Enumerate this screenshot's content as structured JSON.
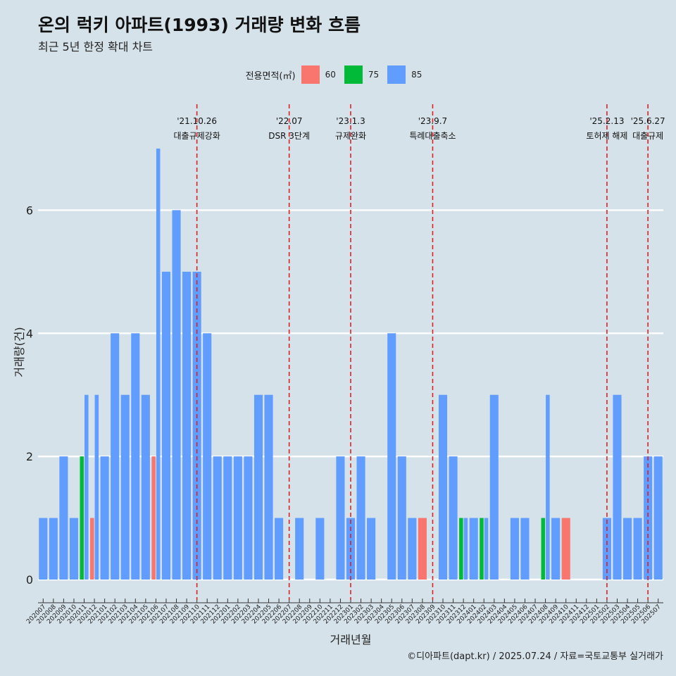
{
  "header": {
    "title": "온의 럭키 아파트(1993) 거래량 변화 흐름",
    "subtitle": "최근 5년 한정 확대 차트"
  },
  "legend": {
    "title": "전용면적(㎡)",
    "items": [
      {
        "label": "60",
        "color": "#F8766D"
      },
      {
        "label": "75",
        "color": "#00BA38"
      },
      {
        "label": "85",
        "color": "#619CFF"
      }
    ]
  },
  "caption": "©디아파트(dapt.kr) / 2025.07.24 / 자료=국토교통부 실거래가",
  "chart_data": {
    "type": "bar",
    "stacked": false,
    "grouped_by": "전용면적(㎡)",
    "xlabel": "거래년월",
    "ylabel": "거래량(건)",
    "ylim": [
      0,
      7
    ],
    "yticks": [
      0,
      2,
      4,
      6
    ],
    "grid": "horizontal",
    "legend_position": "top",
    "categories": [
      "202007",
      "202008",
      "202009",
      "202010",
      "202011",
      "202012",
      "202101",
      "202102",
      "202103",
      "202104",
      "202105",
      "202106",
      "202107",
      "202108",
      "202109",
      "202110",
      "202111",
      "202112",
      "202201",
      "202202",
      "202203",
      "202204",
      "202205",
      "202206",
      "202207",
      "202208",
      "202209",
      "202210",
      "202211",
      "202212",
      "202301",
      "202302",
      "202303",
      "202304",
      "202305",
      "202306",
      "202307",
      "202308",
      "202309",
      "202310",
      "202311",
      "202312",
      "202401",
      "202402",
      "202403",
      "202404",
      "202405",
      "202406",
      "202407",
      "202408",
      "202409",
      "202410",
      "202411",
      "202412",
      "202501",
      "202502",
      "202503",
      "202504",
      "202505",
      "202506",
      "202507"
    ],
    "series": [
      {
        "name": "60",
        "color": "#F8766D",
        "values": [
          0,
          0,
          0,
          0,
          0,
          1,
          0,
          0,
          0,
          0,
          0,
          2,
          0,
          0,
          0,
          0,
          0,
          0,
          0,
          0,
          0,
          0,
          0,
          0,
          0,
          0,
          0,
          0,
          0,
          0,
          0,
          0,
          0,
          0,
          0,
          0,
          0,
          1,
          0,
          0,
          0,
          0,
          0,
          0,
          0,
          0,
          0,
          0,
          0,
          0,
          0,
          1,
          0,
          0,
          0,
          0,
          0,
          0,
          0,
          0,
          0
        ]
      },
      {
        "name": "75",
        "color": "#00BA38",
        "values": [
          0,
          0,
          0,
          0,
          2,
          0,
          0,
          0,
          0,
          0,
          0,
          0,
          0,
          0,
          0,
          0,
          0,
          0,
          0,
          0,
          0,
          0,
          0,
          0,
          0,
          0,
          0,
          0,
          0,
          0,
          0,
          0,
          0,
          0,
          0,
          0,
          0,
          0,
          0,
          0,
          0,
          1,
          0,
          1,
          0,
          0,
          0,
          0,
          0,
          1,
          0,
          0,
          0,
          0,
          0,
          0,
          0,
          0,
          0,
          0,
          0
        ]
      },
      {
        "name": "85",
        "color": "#619CFF",
        "values": [
          1,
          1,
          2,
          1,
          3,
          3,
          2,
          4,
          3,
          4,
          3,
          7,
          5,
          6,
          5,
          5,
          4,
          2,
          2,
          2,
          2,
          3,
          3,
          1,
          0,
          1,
          0,
          1,
          0,
          2,
          1,
          2,
          1,
          0,
          4,
          2,
          1,
          0,
          0,
          3,
          2,
          1,
          1,
          1,
          3,
          0,
          1,
          1,
          0,
          3,
          1,
          0,
          0,
          0,
          0,
          1,
          3,
          1,
          1,
          2,
          2
        ]
      }
    ],
    "annotations": [
      {
        "x": "202110",
        "date": "'21.10.26",
        "text": "대출규제강화"
      },
      {
        "x": "202207",
        "date": "'22.07",
        "text": "DSR 3단계"
      },
      {
        "x": "202301",
        "date": "'23.1.3",
        "text": "규제완화"
      },
      {
        "x": "202309",
        "date": "'23.9.7",
        "text": "특례대출축소"
      },
      {
        "x": "202502",
        "date": "'25.2.13",
        "text": "토허제 해제"
      },
      {
        "x": "202506",
        "date": "'25.6.27",
        "text": "대출규제"
      }
    ]
  }
}
